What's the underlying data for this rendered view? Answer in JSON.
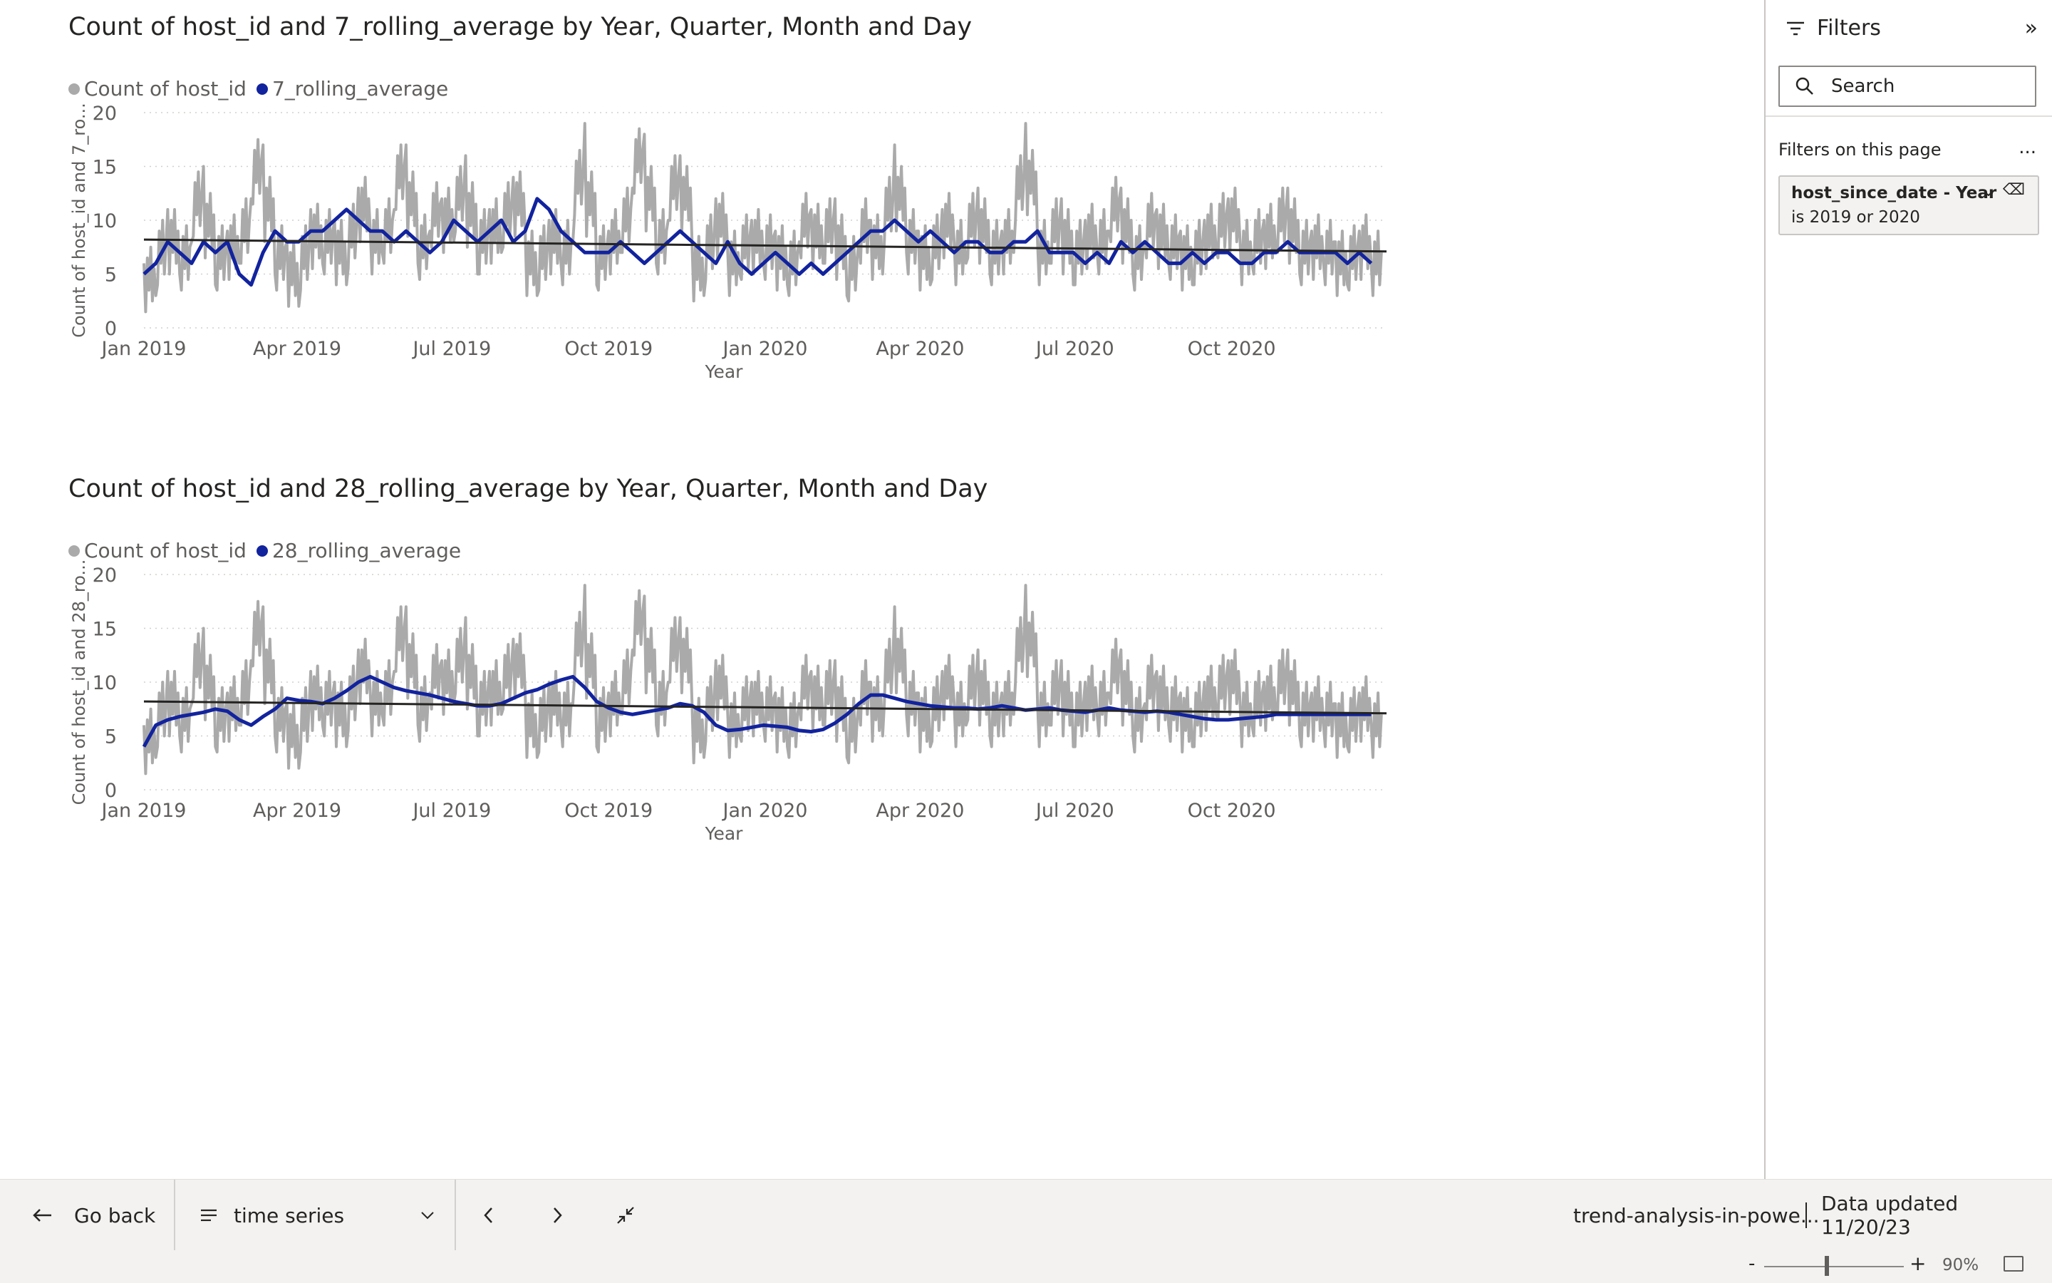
{
  "charts": [
    {
      "title": "Count of host_id and 7_rolling_average by Year, Quarter, Month and Day",
      "legend": [
        {
          "label": "Count of host_id",
          "color": "#aaaaaa"
        },
        {
          "label": "7_rolling_average",
          "color": "#12239e"
        }
      ],
      "ylabel": "Count of host_id and 7_ro...",
      "xlabel": "Year"
    },
    {
      "title": "Count of host_id and 28_rolling_average by Year, Quarter, Month and Day",
      "legend": [
        {
          "label": "Count of host_id",
          "color": "#aaaaaa"
        },
        {
          "label": "28_rolling_average",
          "color": "#12239e"
        }
      ],
      "ylabel": "Count of host_id and 28_ro...",
      "xlabel": "Year"
    }
  ],
  "chart_data": [
    {
      "type": "line",
      "title": "Count of host_id and 7_rolling_average by Year, Quarter, Month and Day",
      "xlabel": "Year",
      "ylabel": "Count of host_id and 7_ro...",
      "x_ticks": [
        "Jan 2019",
        "Apr 2019",
        "Jul 2019",
        "Oct 2019",
        "Jan 2020",
        "Apr 2020",
        "Jul 2020",
        "Oct 2020"
      ],
      "y_ticks": [
        0,
        5,
        10,
        15,
        20
      ],
      "ylim": [
        0,
        20
      ],
      "xlim": [
        "2019-01-01",
        "2020-12-31"
      ],
      "grid": true,
      "legend_position": "top-left",
      "series": [
        {
          "name": "Count of host_id",
          "color": "#aaaaaa",
          "sampled_every_7_days": [
            6,
            3,
            11,
            5,
            8,
            15,
            4,
            9,
            6,
            12,
            17,
            5,
            8,
            2,
            11,
            6,
            10,
            4,
            13,
            9,
            7,
            11,
            17,
            6,
            9,
            12,
            8,
            16,
            5,
            11,
            7,
            14,
            9,
            3,
            10,
            6,
            8,
            19,
            4,
            9,
            7,
            13,
            18,
            6,
            10,
            16,
            8,
            3,
            12,
            7,
            5,
            10,
            6,
            9,
            4,
            8,
            11,
            6,
            12,
            3,
            8,
            10,
            5,
            17,
            7,
            9,
            4,
            11,
            8,
            6,
            13,
            5,
            9,
            7,
            19,
            8,
            6,
            12,
            4,
            10,
            7,
            9,
            13,
            5,
            8,
            11,
            6,
            9,
            4,
            10,
            7,
            12,
            8,
            6,
            10,
            7,
            13,
            5,
            9,
            6,
            8,
            4,
            9,
            6
          ]
        },
        {
          "name": "7_rolling_average",
          "color": "#12239e",
          "sampled_every_7_days": [
            5,
            6,
            8,
            7,
            6,
            8,
            7,
            8,
            5,
            4,
            7,
            9,
            8,
            8,
            9,
            9,
            10,
            11,
            10,
            9,
            9,
            8,
            9,
            8,
            7,
            8,
            10,
            9,
            8,
            9,
            10,
            8,
            9,
            12,
            11,
            9,
            8,
            7,
            7,
            7,
            8,
            7,
            6,
            7,
            8,
            9,
            8,
            7,
            6,
            8,
            6,
            5,
            6,
            7,
            6,
            5,
            6,
            5,
            6,
            7,
            8,
            9,
            9,
            10,
            9,
            8,
            9,
            8,
            7,
            8,
            8,
            7,
            7,
            8,
            8,
            9,
            7,
            7,
            7,
            6,
            7,
            6,
            8,
            7,
            8,
            7,
            6,
            6,
            7,
            6,
            7,
            7,
            6,
            6,
            7,
            7,
            8,
            7,
            7,
            7,
            7,
            6,
            7,
            6
          ]
        },
        {
          "name": "trend",
          "color": "#252423",
          "start": 8.2,
          "end": 7.1
        }
      ]
    },
    {
      "type": "line",
      "title": "Count of host_id and 28_rolling_average by Year, Quarter, Month and Day",
      "xlabel": "Year",
      "ylabel": "Count of host_id and 28_ro...",
      "x_ticks": [
        "Jan 2019",
        "Apr 2019",
        "Jul 2019",
        "Oct 2019",
        "Jan 2020",
        "Apr 2020",
        "Jul 2020",
        "Oct 2020"
      ],
      "y_ticks": [
        0,
        5,
        10,
        15,
        20
      ],
      "ylim": [
        0,
        20
      ],
      "xlim": [
        "2019-01-01",
        "2020-12-31"
      ],
      "grid": true,
      "legend_position": "top-left",
      "series": [
        {
          "name": "Count of host_id",
          "color": "#aaaaaa",
          "sampled_every_7_days": [
            6,
            3,
            11,
            5,
            8,
            15,
            4,
            9,
            6,
            12,
            17,
            5,
            8,
            2,
            11,
            6,
            10,
            4,
            13,
            9,
            7,
            11,
            17,
            6,
            9,
            12,
            8,
            16,
            5,
            11,
            7,
            14,
            9,
            3,
            10,
            6,
            8,
            19,
            4,
            9,
            7,
            13,
            18,
            6,
            10,
            16,
            8,
            3,
            12,
            7,
            5,
            10,
            6,
            9,
            4,
            8,
            11,
            6,
            12,
            3,
            8,
            10,
            5,
            17,
            7,
            9,
            4,
            11,
            8,
            6,
            13,
            5,
            9,
            7,
            19,
            8,
            6,
            12,
            4,
            10,
            7,
            9,
            13,
            5,
            8,
            11,
            6,
            9,
            4,
            10,
            7,
            12,
            8,
            6,
            10,
            7,
            13,
            5,
            9,
            6,
            8,
            4,
            9,
            6
          ]
        },
        {
          "name": "28_rolling_average",
          "color": "#12239e",
          "sampled_every_7_days": [
            4,
            6,
            6.5,
            6.8,
            7,
            7.2,
            7.5,
            7.3,
            6.5,
            6,
            6.8,
            7.5,
            8.5,
            8.3,
            8.2,
            8,
            8.5,
            9.2,
            10,
            10.5,
            10,
            9.5,
            9.2,
            9,
            8.8,
            8.5,
            8.2,
            8,
            7.8,
            7.8,
            8,
            8.5,
            9,
            9.3,
            9.8,
            10.2,
            10.5,
            9.5,
            8.2,
            7.6,
            7.2,
            7,
            7.2,
            7.4,
            7.6,
            8,
            7.8,
            7.2,
            6,
            5.5,
            5.6,
            5.8,
            6,
            5.9,
            5.8,
            5.5,
            5.4,
            5.6,
            6.2,
            7,
            8,
            8.8,
            8.8,
            8.5,
            8.2,
            8,
            7.8,
            7.7,
            7.6,
            7.6,
            7.5,
            7.6,
            7.8,
            7.6,
            7.4,
            7.5,
            7.6,
            7.4,
            7.3,
            7.2,
            7.4,
            7.6,
            7.4,
            7.3,
            7.2,
            7.3,
            7.2,
            7,
            6.8,
            6.6,
            6.5,
            6.5,
            6.6,
            6.7,
            6.8,
            7,
            7,
            7,
            7,
            7,
            7,
            7,
            7,
            7
          ]
        },
        {
          "name": "trend",
          "color": "#252423",
          "start": 8.2,
          "end": 7.1
        }
      ]
    }
  ],
  "filters": {
    "title": "Filters",
    "search_placeholder": "Search",
    "section_label": "Filters on this page",
    "more": "...",
    "card": {
      "name": "host_since_date - Year",
      "condition": "is 2019 or 2020"
    }
  },
  "bottom_bar": {
    "go_back": "Go back",
    "page_selector": "time series",
    "report_name": "trend-analysis-in-powe...",
    "data_updated": "Data updated 11/20/23"
  },
  "status_bar": {
    "zoom_minus": "-",
    "zoom_plus": "+",
    "zoom_percent": "90%",
    "zoom_level": 0.45
  }
}
